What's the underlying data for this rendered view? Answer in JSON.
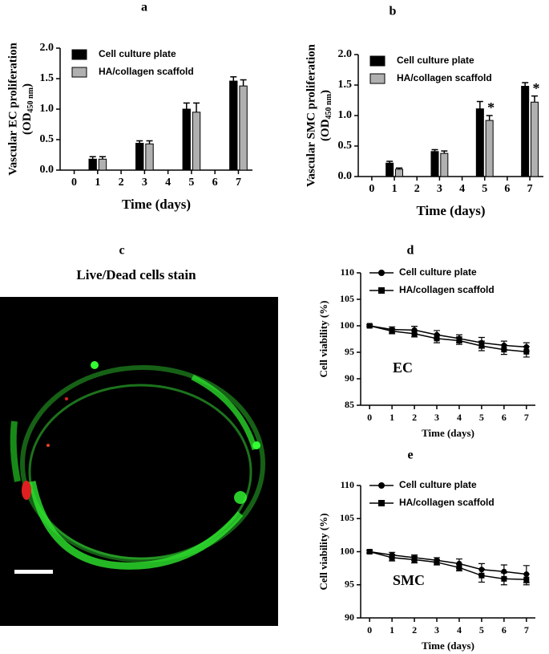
{
  "chart_data": [
    {
      "type": "bar",
      "panel_label": "a",
      "ylabel": "Vascular EC proliferation",
      "ylabel_unit_open": "(OD",
      "ylabel_unit_sub": "450 nm",
      "ylabel_unit_close": ")",
      "xlabel": "Time (days)",
      "x": [
        1,
        3,
        5,
        7
      ],
      "xlim": [
        -0.6,
        7.6
      ],
      "xticks": [
        0,
        1,
        2,
        3,
        4,
        5,
        6,
        7
      ],
      "ylim": [
        0,
        2
      ],
      "yticks": [
        {
          "value": 0,
          "label": "0.0"
        },
        0.5,
        {
          "value": 1,
          "label": "1.0"
        },
        1.5,
        {
          "value": 2,
          "label": "2.0"
        }
      ],
      "legend": "upper left",
      "series": [
        {
          "name": "Cell culture plate",
          "color": "#000000",
          "values": [
            0.18,
            0.44,
            1.0,
            1.46
          ],
          "errors": [
            0.04,
            0.04,
            0.1,
            0.07
          ]
        },
        {
          "name": "HA/collagen scaffold",
          "color": "#b0b0b0",
          "values": [
            0.18,
            0.43,
            0.95,
            1.38
          ],
          "errors": [
            0.04,
            0.05,
            0.15,
            0.1
          ]
        }
      ]
    },
    {
      "type": "bar",
      "panel_label": "b",
      "ylabel": "Vascular SMC proliferation",
      "ylabel_unit_open": "(OD",
      "ylabel_unit_sub": "450 nm",
      "ylabel_unit_close": ")",
      "xlabel": "Time (days)",
      "x": [
        1,
        3,
        5,
        7
      ],
      "xlim": [
        -0.6,
        7.6
      ],
      "xticks": [
        0,
        1,
        2,
        3,
        4,
        5,
        6,
        7
      ],
      "ylim": [
        0,
        2
      ],
      "yticks": [
        {
          "value": 0,
          "label": "0.0"
        },
        0.5,
        {
          "value": 1,
          "label": "1.0"
        },
        1.5,
        {
          "value": 2,
          "label": "2.0"
        }
      ],
      "legend": "upper left",
      "series": [
        {
          "name": "Cell culture plate",
          "color": "#000000",
          "values": [
            0.22,
            0.41,
            1.11,
            1.48
          ],
          "errors": [
            0.03,
            0.03,
            0.12,
            0.06
          ]
        },
        {
          "name": "HA/collagen scaffold",
          "color": "#b0b0b0",
          "values": [
            0.12,
            0.38,
            0.92,
            1.22
          ],
          "errors": [
            0.02,
            0.04,
            0.08,
            0.1
          ],
          "significance": [
            null,
            null,
            "*",
            "*"
          ]
        }
      ]
    },
    {
      "type": "line",
      "panel_label": "d",
      "ylabel": "Cell viability (%)",
      "xlabel": "Time (days)",
      "annotation": "EC",
      "x": [
        0,
        1,
        2,
        3,
        4,
        5,
        6,
        7
      ],
      "xlim": [
        -0.4,
        7.4
      ],
      "xticks": [
        0,
        1,
        2,
        3,
        4,
        5,
        6,
        7
      ],
      "ylim": [
        85,
        110
      ],
      "yticks": [
        85,
        90,
        95,
        100,
        105,
        110
      ],
      "legend": "upper left",
      "series": [
        {
          "name": "Cell culture plate",
          "color": "#000000",
          "marker": "circle",
          "values": [
            100,
            99.3,
            99.2,
            98.3,
            97.6,
            96.8,
            96.3,
            96.0
          ],
          "errors": [
            0.2,
            0.5,
            0.7,
            0.8,
            0.7,
            1.0,
            0.8,
            0.8
          ]
        },
        {
          "name": "HA/collagen scaffold",
          "color": "#000000",
          "marker": "square",
          "values": [
            100,
            99.0,
            98.5,
            97.6,
            97.2,
            96.2,
            95.5,
            95.1
          ],
          "errors": [
            0.2,
            0.5,
            0.6,
            0.8,
            0.7,
            0.9,
            0.9,
            1.0
          ]
        }
      ]
    },
    {
      "type": "line",
      "panel_label": "e",
      "ylabel": "Cell viability (%)",
      "xlabel": "Time (days)",
      "annotation": "SMC",
      "x": [
        0,
        1,
        2,
        3,
        4,
        5,
        6,
        7
      ],
      "xlim": [
        -0.4,
        7.4
      ],
      "xticks": [
        0,
        1,
        2,
        3,
        4,
        5,
        6,
        7
      ],
      "ylim": [
        90,
        110
      ],
      "yticks": [
        90,
        95,
        100,
        105,
        110
      ],
      "legend": "upper left",
      "series": [
        {
          "name": "Cell culture plate",
          "color": "#000000",
          "marker": "circle",
          "values": [
            100,
            99.5,
            99.1,
            98.7,
            98.2,
            97.3,
            97.0,
            96.6
          ],
          "errors": [
            0.2,
            0.4,
            0.4,
            0.4,
            0.7,
            0.9,
            1.0,
            1.3
          ]
        },
        {
          "name": "HA/collagen scaffold",
          "color": "#000000",
          "marker": "square",
          "values": [
            100,
            99.1,
            98.8,
            98.4,
            97.6,
            96.4,
            95.9,
            95.8
          ],
          "errors": [
            0.2,
            0.5,
            0.5,
            0.4,
            0.5,
            1.0,
            0.9,
            0.8
          ]
        }
      ]
    }
  ],
  "image": {
    "panel_label": "c",
    "title": "Live/Dead cells stain"
  }
}
